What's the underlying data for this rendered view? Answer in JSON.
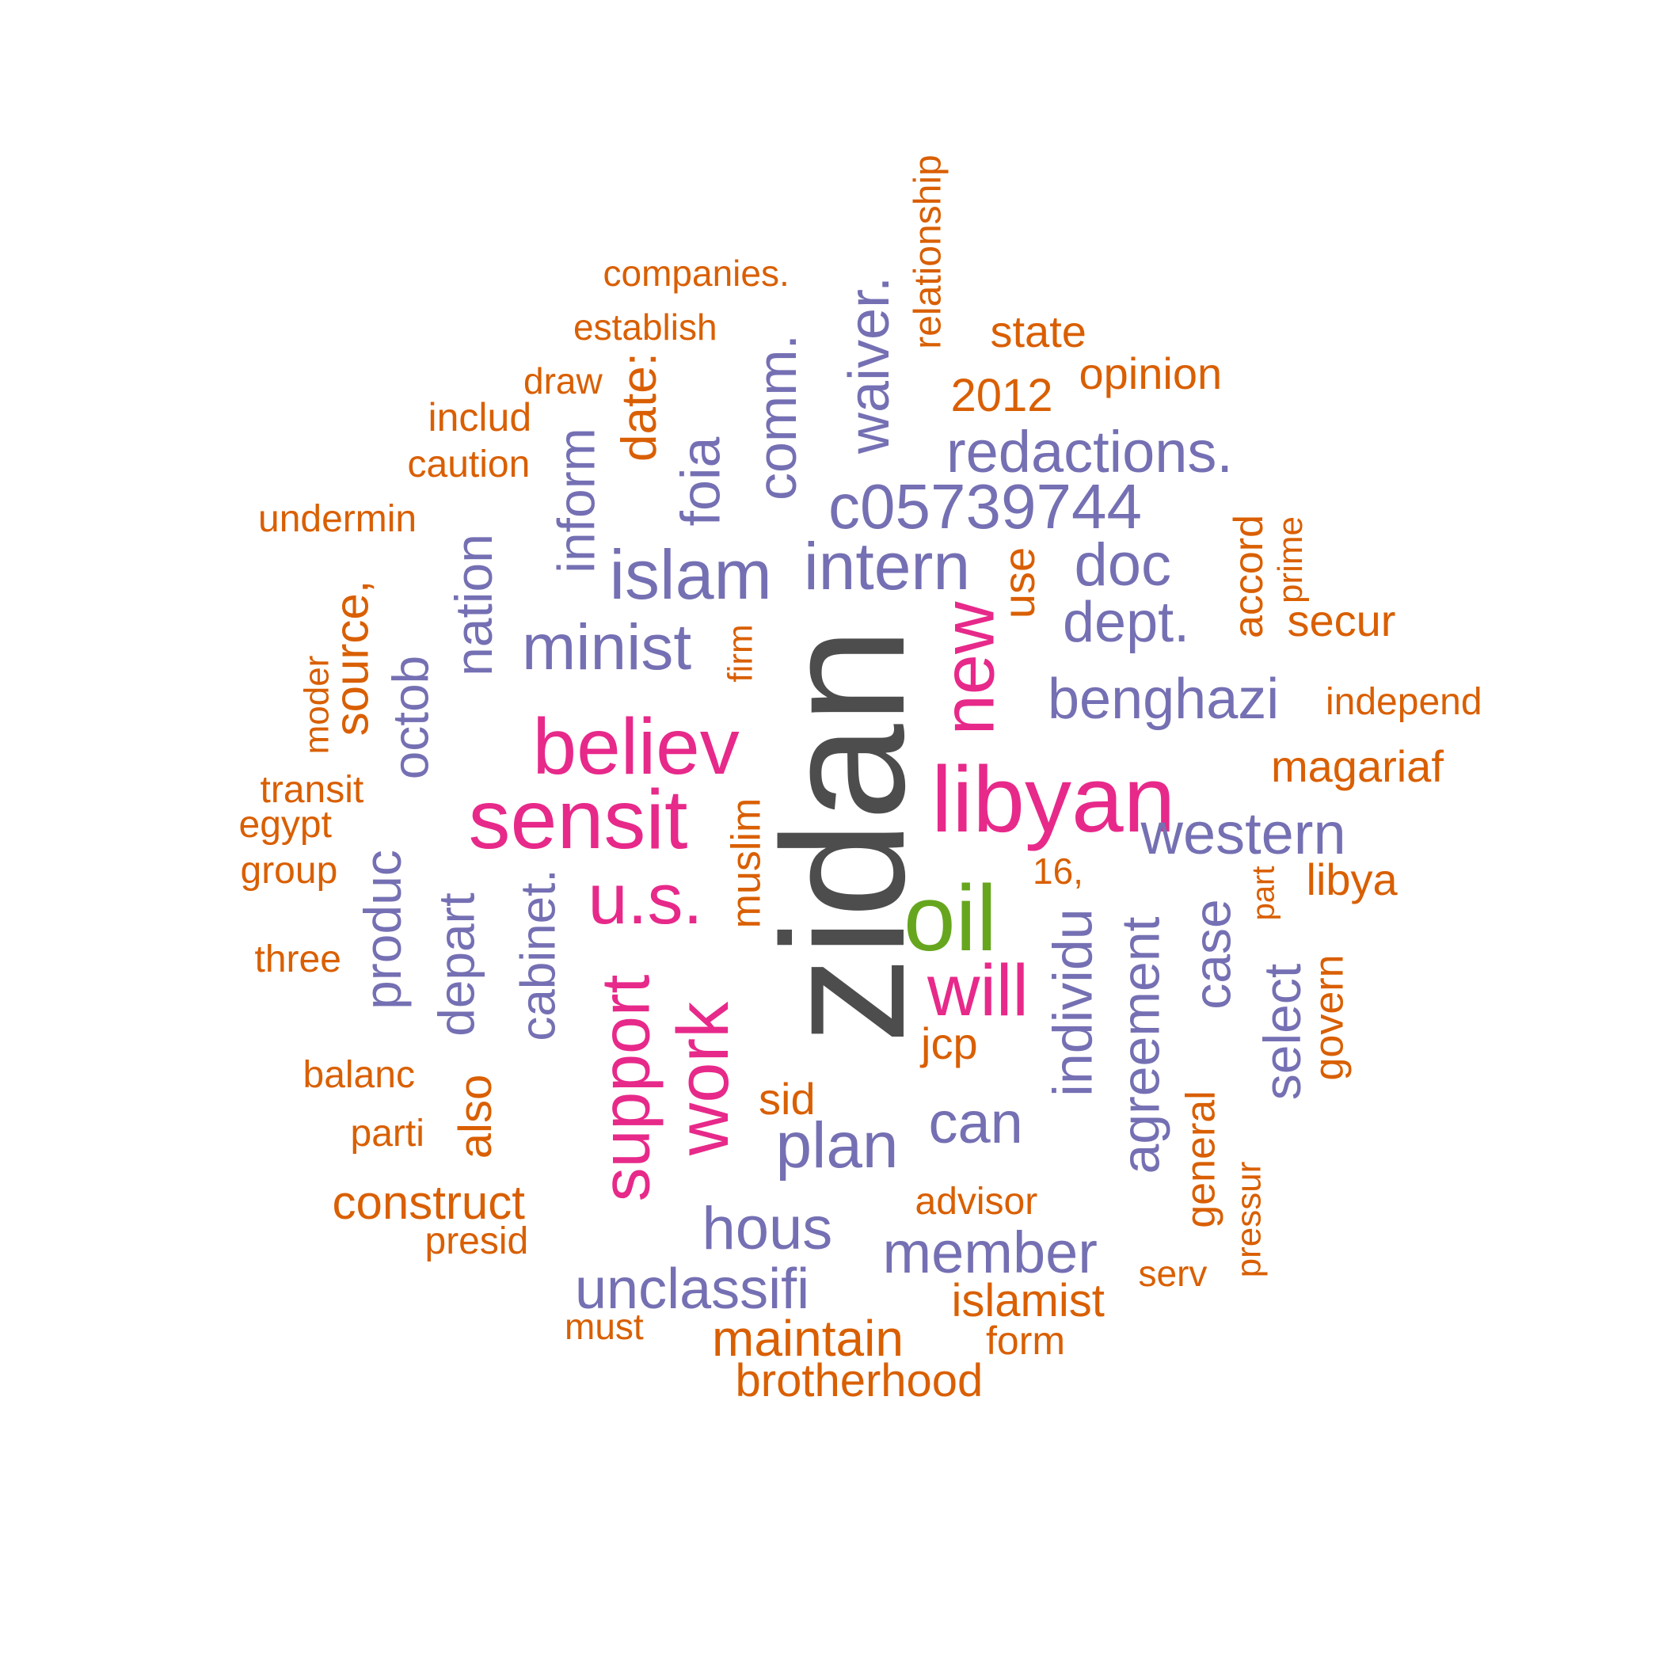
{
  "palette": {
    "large": "#4d4d4d",
    "accent": "#66a61e",
    "magenta": "#e7298a",
    "purple": "#7570b3",
    "orange": "#d95f02"
  },
  "words": [
    {
      "text": "zidan",
      "tier": "large"
    },
    {
      "text": "oil",
      "tier": "accent"
    },
    {
      "text": "libyan",
      "tier": "magenta"
    },
    {
      "text": "sensit",
      "tier": "magenta"
    },
    {
      "text": "believ",
      "tier": "magenta"
    },
    {
      "text": "u.s.",
      "tier": "magenta"
    },
    {
      "text": "new",
      "tier": "magenta"
    },
    {
      "text": "will",
      "tier": "magenta"
    },
    {
      "text": "support",
      "tier": "magenta"
    },
    {
      "text": "work",
      "tier": "magenta"
    },
    {
      "text": "minist",
      "tier": "purple"
    },
    {
      "text": "islam",
      "tier": "purple"
    },
    {
      "text": "intern",
      "tier": "purple"
    },
    {
      "text": "c05739744",
      "tier": "purple"
    },
    {
      "text": "redactions.",
      "tier": "purple"
    },
    {
      "text": "doc",
      "tier": "purple"
    },
    {
      "text": "dept.",
      "tier": "purple"
    },
    {
      "text": "benghazi",
      "tier": "purple"
    },
    {
      "text": "western",
      "tier": "purple"
    },
    {
      "text": "plan",
      "tier": "purple"
    },
    {
      "text": "can",
      "tier": "purple"
    },
    {
      "text": "hous",
      "tier": "purple"
    },
    {
      "text": "member",
      "tier": "purple"
    },
    {
      "text": "unclassifi",
      "tier": "purple"
    },
    {
      "text": "waiver.",
      "tier": "purple"
    },
    {
      "text": "comm.",
      "tier": "purple"
    },
    {
      "text": "foia",
      "tier": "purple"
    },
    {
      "text": "inform",
      "tier": "purple"
    },
    {
      "text": "nation",
      "tier": "purple"
    },
    {
      "text": "octob",
      "tier": "purple"
    },
    {
      "text": "produc",
      "tier": "purple"
    },
    {
      "text": "depart",
      "tier": "purple"
    },
    {
      "text": "cabinet.",
      "tier": "purple"
    },
    {
      "text": "individu",
      "tier": "purple"
    },
    {
      "text": "agreement",
      "tier": "purple"
    },
    {
      "text": "case",
      "tier": "purple"
    },
    {
      "text": "select",
      "tier": "purple"
    },
    {
      "text": "date:",
      "tier": "orange"
    },
    {
      "text": "source,",
      "tier": "orange"
    },
    {
      "text": "use",
      "tier": "orange"
    },
    {
      "text": "also",
      "tier": "orange"
    },
    {
      "text": "muslim",
      "tier": "orange"
    },
    {
      "text": "firm",
      "tier": "orange"
    },
    {
      "text": "general",
      "tier": "orange"
    },
    {
      "text": "govern",
      "tier": "orange"
    },
    {
      "text": "accord",
      "tier": "orange"
    },
    {
      "text": "prime",
      "tier": "orange"
    },
    {
      "text": "part",
      "tier": "orange"
    },
    {
      "text": "pressur",
      "tier": "orange"
    },
    {
      "text": "moder",
      "tier": "orange"
    },
    {
      "text": "relationship",
      "tier": "orange"
    },
    {
      "text": "companies.",
      "tier": "orange"
    },
    {
      "text": "establish",
      "tier": "orange"
    },
    {
      "text": "draw",
      "tier": "orange"
    },
    {
      "text": "includ",
      "tier": "orange"
    },
    {
      "text": "caution",
      "tier": "orange"
    },
    {
      "text": "undermin",
      "tier": "orange"
    },
    {
      "text": "state",
      "tier": "orange"
    },
    {
      "text": "opinion",
      "tier": "orange"
    },
    {
      "text": "2012",
      "tier": "orange"
    },
    {
      "text": "secur",
      "tier": "orange"
    },
    {
      "text": "independ",
      "tier": "orange"
    },
    {
      "text": "magariaf",
      "tier": "orange"
    },
    {
      "text": "libya",
      "tier": "orange"
    },
    {
      "text": "16,",
      "tier": "orange"
    },
    {
      "text": "transit",
      "tier": "orange"
    },
    {
      "text": "egypt",
      "tier": "orange"
    },
    {
      "text": "group",
      "tier": "orange"
    },
    {
      "text": "three",
      "tier": "orange"
    },
    {
      "text": "balanc",
      "tier": "orange"
    },
    {
      "text": "parti",
      "tier": "orange"
    },
    {
      "text": "construct",
      "tier": "orange"
    },
    {
      "text": "presid",
      "tier": "orange"
    },
    {
      "text": "must",
      "tier": "orange"
    },
    {
      "text": "maintain",
      "tier": "orange"
    },
    {
      "text": "brotherhood",
      "tier": "orange"
    },
    {
      "text": "islamist",
      "tier": "orange"
    },
    {
      "text": "form",
      "tier": "orange"
    },
    {
      "text": "serv",
      "tier": "orange"
    },
    {
      "text": "advisor",
      "tier": "orange"
    },
    {
      "text": "sid",
      "tier": "orange"
    },
    {
      "text": "jcp",
      "tier": "orange"
    }
  ]
}
